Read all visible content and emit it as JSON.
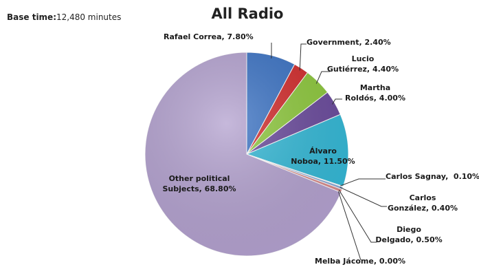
{
  "chart_data": {
    "type": "pie",
    "title": "All Radio",
    "subtitle_label": "Base time:",
    "subtitle_value": "12,480  minutes",
    "slices": [
      {
        "name": "Rafael Correa",
        "value": 7.8,
        "label": "Rafael Correa, 7.80%",
        "color": "#3a72c4"
      },
      {
        "name": "Government",
        "value": 2.4,
        "label": "Government, 2.40%",
        "color": "#d22b2b"
      },
      {
        "name": "Lucio Gutiérrez",
        "value": 4.4,
        "label": "Lucio\nGutiérrez, 4.40%",
        "color": "#8dc83c"
      },
      {
        "name": "Martha Roldós",
        "value": 4.0,
        "label": "Martha\nRoldós, 4.00%",
        "color": "#6a4a9c"
      },
      {
        "name": "Álvaro Noboa",
        "value": 11.5,
        "label": "Álvaro\nNoboa, 11.50%",
        "color": "#33b8d6"
      },
      {
        "name": "Carlos Sagnay",
        "value": 0.1,
        "label": "Carlos Sagnay,  0.10%",
        "color": "#f29a3a"
      },
      {
        "name": "Carlos González",
        "value": 0.4,
        "label": "Carlos\nGonzález, 0.40%",
        "color": "#8aa9d6"
      },
      {
        "name": "Diego Delgado",
        "value": 0.5,
        "label": "Diego\nDelgado, 0.50%",
        "color": "#d98a8a"
      },
      {
        "name": "Melba Jácome",
        "value": 0.0,
        "label": "Melba Jácome, 0.00%",
        "color": "#c4d99a"
      },
      {
        "name": "Other political Subjects",
        "value": 68.8,
        "label": "Other political\nSubjects, 68.80%",
        "color": "#b3a1cf"
      }
    ]
  }
}
